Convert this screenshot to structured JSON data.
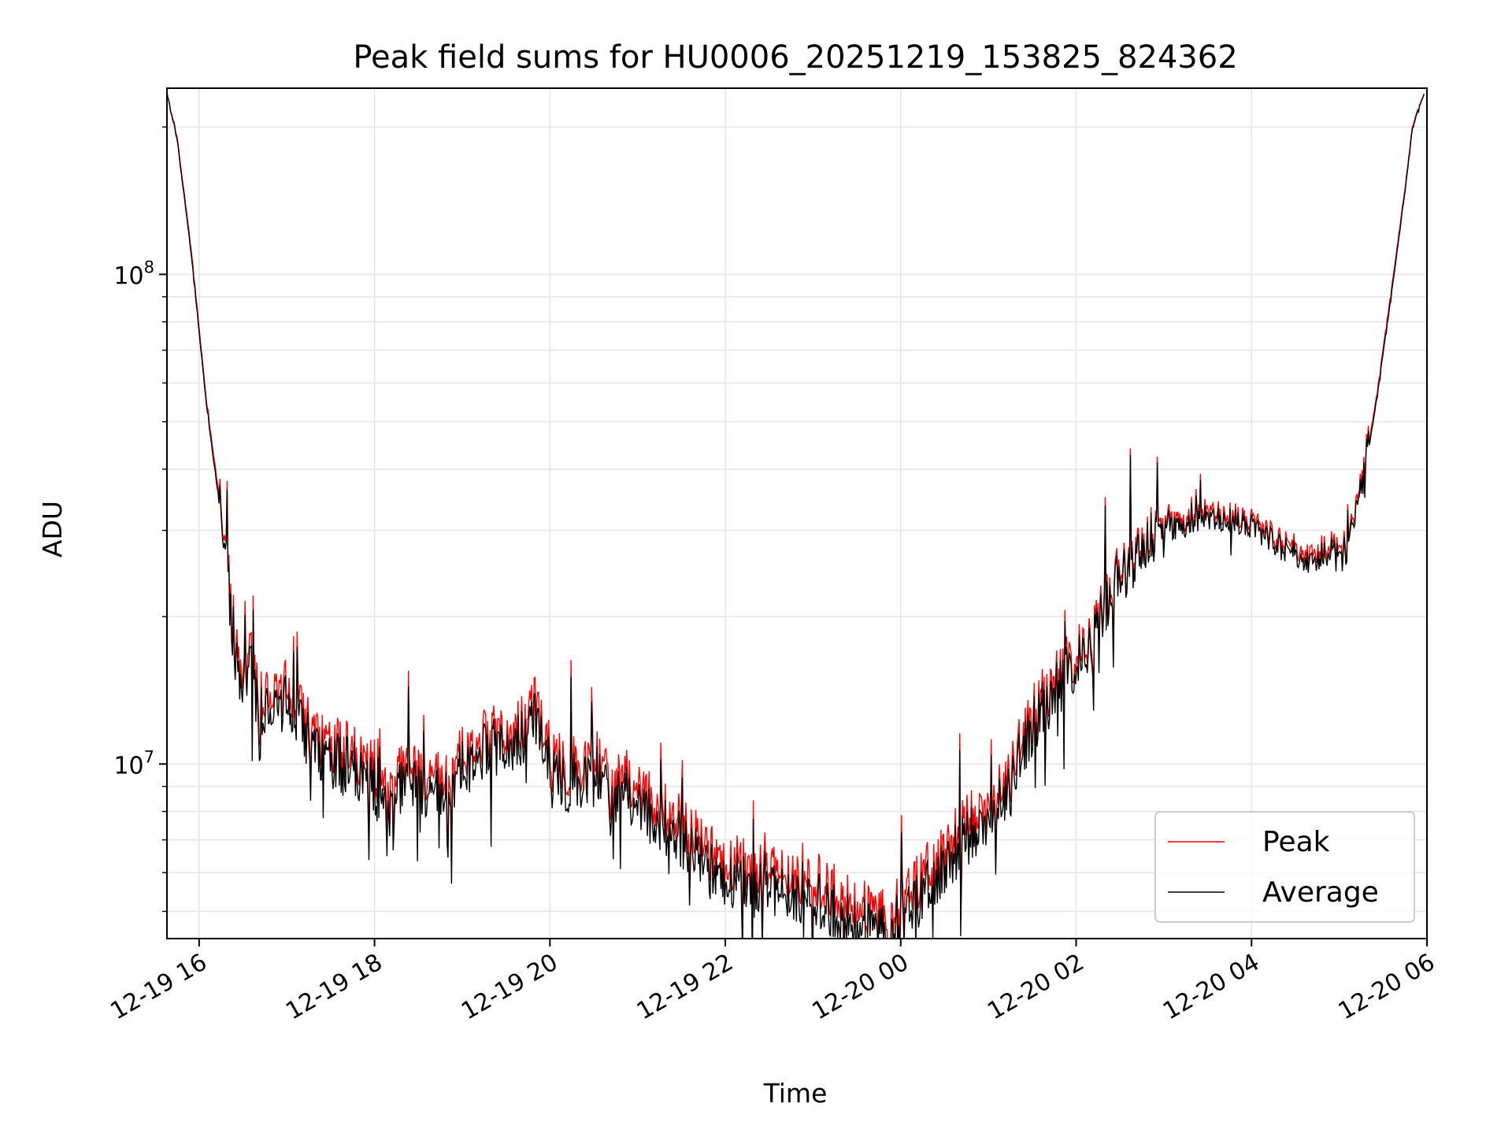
{
  "chart_data": {
    "type": "line",
    "title": "Peak field sums for HU0006_20251219_153825_824362",
    "xlabel": "Time",
    "ylabel": "ADU",
    "y_scale": "log",
    "ylim": [
      4400000,
      240000000
    ],
    "xlim": [
      "2025-12-19 15:38",
      "2025-12-20 06:00"
    ],
    "grid": true,
    "legend_position": "lower-right",
    "x_ticks": [
      {
        "value": "2025-12-19 16:00",
        "label": "12-19 16"
      },
      {
        "value": "2025-12-19 18:00",
        "label": "12-19 18"
      },
      {
        "value": "2025-12-19 20:00",
        "label": "12-19 20"
      },
      {
        "value": "2025-12-19 22:00",
        "label": "12-19 22"
      },
      {
        "value": "2025-12-20 00:00",
        "label": "12-20 00"
      },
      {
        "value": "2025-12-20 02:00",
        "label": "12-20 02"
      },
      {
        "value": "2025-12-20 04:00",
        "label": "12-20 04"
      },
      {
        "value": "2025-12-20 06:00",
        "label": "12-20 06"
      }
    ],
    "y_ticks": [
      {
        "value": 10000000,
        "base": "10",
        "exponent": "7"
      },
      {
        "value": 100000000,
        "base": "10",
        "exponent": "8"
      }
    ],
    "series": [
      {
        "name": "Peak",
        "color": "#ff0000",
        "x": [
          "2025-12-19 15:38",
          "2025-12-19 15:45",
          "2025-12-19 15:55",
          "2025-12-19 16:05",
          "2025-12-19 16:15",
          "2025-12-19 16:20",
          "2025-12-19 16:27",
          "2025-12-19 16:35",
          "2025-12-19 16:40",
          "2025-12-19 16:50",
          "2025-12-19 17:00",
          "2025-12-19 17:15",
          "2025-12-19 17:30",
          "2025-12-19 17:45",
          "2025-12-19 18:00",
          "2025-12-19 18:10",
          "2025-12-19 18:20",
          "2025-12-19 18:35",
          "2025-12-19 18:50",
          "2025-12-19 19:00",
          "2025-12-19 19:20",
          "2025-12-19 19:40",
          "2025-12-19 19:50",
          "2025-12-19 20:00",
          "2025-12-19 20:15",
          "2025-12-19 20:30",
          "2025-12-19 20:45",
          "2025-12-19 21:00",
          "2025-12-19 21:20",
          "2025-12-19 21:40",
          "2025-12-19 22:00",
          "2025-12-19 22:20",
          "2025-12-19 22:40",
          "2025-12-19 23:00",
          "2025-12-19 23:20",
          "2025-12-19 23:40",
          "2025-12-19 23:55",
          "2025-12-20 00:10",
          "2025-12-20 00:30",
          "2025-12-20 00:50",
          "2025-12-20 01:10",
          "2025-12-20 01:20",
          "2025-12-20 01:35",
          "2025-12-20 01:50",
          "2025-12-20 02:10",
          "2025-12-20 02:20",
          "2025-12-20 02:30",
          "2025-12-20 02:45",
          "2025-12-20 03:00",
          "2025-12-20 03:30",
          "2025-12-20 04:00",
          "2025-12-20 04:20",
          "2025-12-20 04:40",
          "2025-12-20 05:00",
          "2025-12-20 05:10",
          "2025-12-20 05:15",
          "2025-12-20 05:25",
          "2025-12-20 05:35",
          "2025-12-20 05:45",
          "2025-12-20 05:50",
          "2025-12-20 05:58"
        ],
        "values": [
          235000000,
          190000000,
          110000000,
          55000000,
          33000000,
          24000000,
          15500000,
          17000000,
          14000000,
          13500000,
          14500000,
          12000000,
          11000000,
          10500000,
          9800000,
          8400000,
          10000000,
          9500000,
          9300000,
          10500000,
          11500000,
          12000000,
          13500000,
          11000000,
          9300000,
          10500000,
          9200000,
          8900000,
          8000000,
          7200000,
          6400000,
          6000000,
          5900000,
          5700000,
          5400000,
          5000000,
          4800000,
          5700000,
          6700000,
          7900000,
          9100000,
          11000000,
          13500000,
          15500000,
          18500000,
          21500000,
          25000000,
          28500000,
          30500000,
          33000000,
          31500000,
          28500000,
          27000000,
          28500000,
          32000000,
          36000000,
          55000000,
          90000000,
          150000000,
          200000000,
          235000000
        ]
      },
      {
        "name": "Average",
        "color": "#000000",
        "x": [
          "2025-12-19 15:38",
          "2025-12-19 15:45",
          "2025-12-19 15:55",
          "2025-12-19 16:05",
          "2025-12-19 16:15",
          "2025-12-19 16:20",
          "2025-12-19 16:27",
          "2025-12-19 16:35",
          "2025-12-19 16:40",
          "2025-12-19 16:50",
          "2025-12-19 17:00",
          "2025-12-19 17:15",
          "2025-12-19 17:30",
          "2025-12-19 17:45",
          "2025-12-19 18:00",
          "2025-12-19 18:10",
          "2025-12-19 18:20",
          "2025-12-19 18:35",
          "2025-12-19 18:50",
          "2025-12-19 19:00",
          "2025-12-19 19:20",
          "2025-12-19 19:40",
          "2025-12-19 19:50",
          "2025-12-19 20:00",
          "2025-12-19 20:15",
          "2025-12-19 20:30",
          "2025-12-19 20:45",
          "2025-12-19 21:00",
          "2025-12-19 21:20",
          "2025-12-19 21:40",
          "2025-12-19 22:00",
          "2025-12-19 22:20",
          "2025-12-19 22:40",
          "2025-12-19 23:00",
          "2025-12-19 23:20",
          "2025-12-19 23:40",
          "2025-12-19 23:55",
          "2025-12-20 00:10",
          "2025-12-20 00:30",
          "2025-12-20 00:50",
          "2025-12-20 01:10",
          "2025-12-20 01:20",
          "2025-12-20 01:35",
          "2025-12-20 01:50",
          "2025-12-20 02:10",
          "2025-12-20 02:20",
          "2025-12-20 02:30",
          "2025-12-20 02:45",
          "2025-12-20 03:00",
          "2025-12-20 03:30",
          "2025-12-20 04:00",
          "2025-12-20 04:20",
          "2025-12-20 04:40",
          "2025-12-20 05:00",
          "2025-12-20 05:10",
          "2025-12-20 05:15",
          "2025-12-20 05:25",
          "2025-12-20 05:35",
          "2025-12-20 05:45",
          "2025-12-20 05:50",
          "2025-12-20 05:58"
        ],
        "values": [
          235000000,
          188000000,
          108000000,
          54000000,
          32000000,
          23000000,
          14500000,
          16000000,
          13000000,
          12500000,
          13500000,
          11200000,
          10200000,
          9800000,
          9000000,
          7700000,
          9300000,
          8800000,
          8600000,
          9800000,
          10800000,
          11200000,
          12500000,
          10200000,
          8600000,
          9800000,
          8500000,
          8200000,
          7400000,
          6600000,
          5900000,
          5500000,
          5400000,
          5200000,
          4900000,
          4600000,
          4450000,
          5200000,
          6200000,
          7300000,
          8500000,
          10300000,
          12700000,
          14700000,
          17700000,
          20700000,
          24200000,
          27700000,
          29700000,
          32000000,
          30700000,
          27700000,
          26000000,
          27700000,
          31200000,
          35000000,
          54000000,
          88000000,
          148000000,
          198000000,
          235000000
        ]
      }
    ]
  }
}
